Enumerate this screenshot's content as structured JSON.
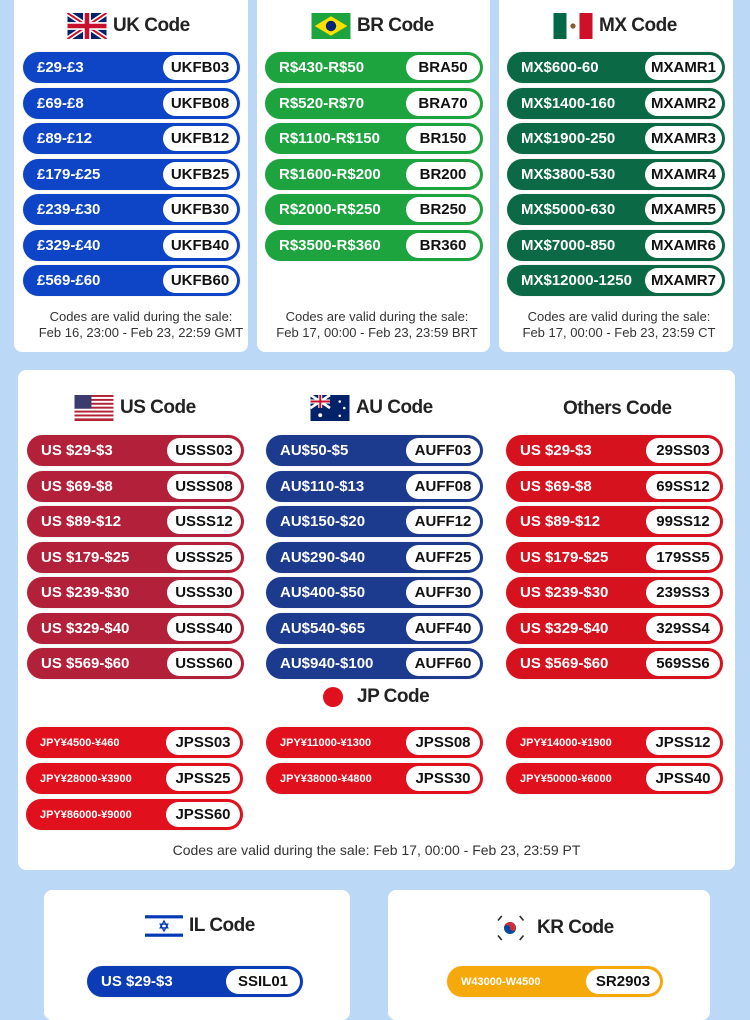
{
  "colors": {
    "background": "#bcd8f7",
    "uk": "#0d45c6",
    "br": "#1ea43f",
    "mx": "#0b6a45",
    "us": "#b3203a",
    "au": "#1c3a8e",
    "others": "#d6121f",
    "jp": "#e0101c",
    "il": "#0b3bb5",
    "kr": "#f6a90a"
  },
  "uk": {
    "title": "UK Code",
    "flag": "uk-flag-icon",
    "items": [
      [
        "£29-£3",
        "UKFB03"
      ],
      [
        "£69-£8",
        "UKFB08"
      ],
      [
        "£89-£12",
        "UKFB12"
      ],
      [
        "£179-£25",
        "UKFB25"
      ],
      [
        "£239-£30",
        "UKFB30"
      ],
      [
        "£329-£40",
        "UKFB40"
      ],
      [
        "£569-£60",
        "UKFB60"
      ]
    ],
    "note1": "Codes are valid during the sale:",
    "note2": "Feb 16, 23:00 - Feb 23, 22:59 GMT"
  },
  "br": {
    "title": "BR Code",
    "flag": "brazil-flag-icon",
    "items": [
      [
        "R$430-R$50",
        "BRA50"
      ],
      [
        "R$520-R$70",
        "BRA70"
      ],
      [
        "R$1100-R$150",
        "BR150"
      ],
      [
        "R$1600-R$200",
        "BR200"
      ],
      [
        "R$2000-R$250",
        "BR250"
      ],
      [
        "R$3500-R$360",
        "BR360"
      ]
    ],
    "note1": "Codes are valid during the sale:",
    "note2": "Feb 17, 00:00 - Feb 23, 23:59 BRT"
  },
  "mx": {
    "title": "MX Code",
    "flag": "mexico-flag-icon",
    "items": [
      [
        "MX$600-60",
        "MXAMR1"
      ],
      [
        "MX$1400-160",
        "MXAMR2"
      ],
      [
        "MX$1900-250",
        "MXAMR3"
      ],
      [
        "MX$3800-530",
        "MXAMR4"
      ],
      [
        "MX$5000-630",
        "MXAMR5"
      ],
      [
        "MX$7000-850",
        "MXAMR6"
      ],
      [
        "MX$12000-1250",
        "MXAMR7"
      ]
    ],
    "note1": "Codes are valid during the sale:",
    "note2": "Feb 17, 00:00 - Feb 23, 23:59  CT"
  },
  "us": {
    "title": "US Code",
    "flag": "us-flag-icon",
    "items": [
      [
        "US $29-$3",
        "USSS03"
      ],
      [
        "US $69-$8",
        "USSS08"
      ],
      [
        "US $89-$12",
        "USSS12"
      ],
      [
        "US $179-$25",
        "USSS25"
      ],
      [
        "US $239-$30",
        "USSS30"
      ],
      [
        "US $329-$40",
        "USSS40"
      ],
      [
        "US $569-$60",
        "USSS60"
      ]
    ]
  },
  "au": {
    "title": "AU Code",
    "flag": "australia-flag-icon",
    "items": [
      [
        "AU$50-$5",
        "AUFF03"
      ],
      [
        "AU$110-$13",
        "AUFF08"
      ],
      [
        "AU$150-$20",
        "AUFF12"
      ],
      [
        "AU$290-$40",
        "AUFF25"
      ],
      [
        "AU$400-$50",
        "AUFF30"
      ],
      [
        "AU$540-$65",
        "AUFF40"
      ],
      [
        "AU$940-$100",
        "AUFF60"
      ]
    ]
  },
  "others": {
    "title": "Others Code",
    "items": [
      [
        "US $29-$3",
        "29SS03"
      ],
      [
        "US $69-$8",
        "69SS12"
      ],
      [
        "US $89-$12",
        "99SS12"
      ],
      [
        "US $179-$25",
        "179SS5"
      ],
      [
        "US $239-$30",
        "239SS3"
      ],
      [
        "US $329-$40",
        "329SS4"
      ],
      [
        "US $569-$60",
        "569SS6"
      ]
    ]
  },
  "jp": {
    "title": "JP Code",
    "flag": "japan-flag-icon",
    "items": [
      [
        "JPY¥4500-¥460",
        "JPSS03"
      ],
      [
        "JPY¥11000-¥1300",
        "JPSS08"
      ],
      [
        "JPY¥14000-¥1900",
        "JPSS12"
      ],
      [
        "JPY¥28000-¥3900",
        "JPSS25"
      ],
      [
        "JPY¥38000-¥4800",
        "JPSS30"
      ],
      [
        "JPY¥50000-¥6000",
        "JPSS40"
      ],
      [
        "JPY¥86000-¥9000",
        "JPSS60"
      ]
    ]
  },
  "middle_note": "Codes are valid during the sale: Feb 17, 00:00 - Feb 23, 23:59 PT",
  "il": {
    "title": "IL Code",
    "flag": "israel-flag-icon",
    "items": [
      [
        "US $29-$3",
        "SSIL01"
      ]
    ]
  },
  "kr": {
    "title": "KR Code",
    "flag": "korea-flag-icon",
    "items": [
      [
        "W43000-W4500",
        "SR2903"
      ]
    ]
  }
}
